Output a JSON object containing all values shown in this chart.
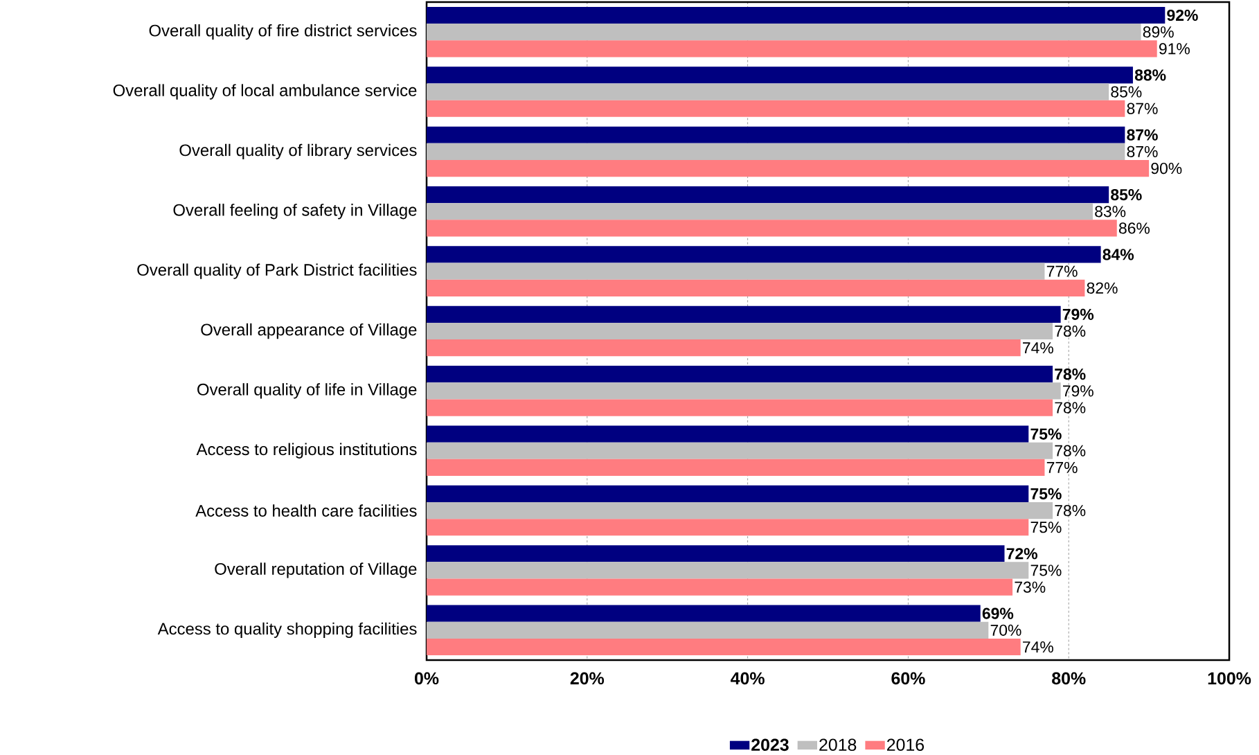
{
  "chart_data": {
    "type": "bar",
    "orientation": "horizontal",
    "categories": [
      "Overall quality of fire district services",
      "Overall quality of local ambulance service",
      "Overall quality of library services",
      "Overall feeling of safety in Village",
      "Overall quality of Park District facilities",
      "Overall appearance of Village",
      "Overall quality of life in Village",
      "Access to religious institutions",
      "Access to health care facilities",
      "Overall reputation of Village",
      "Access to quality shopping facilities"
    ],
    "series": [
      {
        "name": "2023",
        "color": "#000080",
        "values": [
          92,
          88,
          87,
          85,
          84,
          79,
          78,
          75,
          75,
          72,
          69
        ],
        "value_labels": [
          "92%",
          "88%",
          "87%",
          "85%",
          "84%",
          "79%",
          "78%",
          "75%",
          "75%",
          "72%",
          "69%"
        ]
      },
      {
        "name": "2018",
        "color": "#bfbfbf",
        "values": [
          89,
          85,
          87,
          83,
          77,
          78,
          79,
          78,
          78,
          75,
          70
        ],
        "value_labels": [
          "89%",
          "85%",
          "87%",
          "83%",
          "77%",
          "78%",
          "79%",
          "78%",
          "78%",
          "75%",
          "70%"
        ]
      },
      {
        "name": "2016",
        "color": "#ff7c80",
        "values": [
          91,
          87,
          90,
          86,
          82,
          74,
          78,
          77,
          75,
          73,
          74
        ],
        "value_labels": [
          "91%",
          "87%",
          "90%",
          "86%",
          "82%",
          "74%",
          "78%",
          "77%",
          "75%",
          "73%",
          "74%"
        ]
      }
    ],
    "xlim": [
      0,
      100
    ],
    "xticks": [
      {
        "value": 0,
        "label": "0%"
      },
      {
        "value": 20,
        "label": "20%"
      },
      {
        "value": 40,
        "label": "40%"
      },
      {
        "value": 60,
        "label": "60%"
      },
      {
        "value": 80,
        "label": "80%"
      },
      {
        "value": 100,
        "label": "100%"
      }
    ],
    "grid": "x",
    "legend": "bottom"
  }
}
